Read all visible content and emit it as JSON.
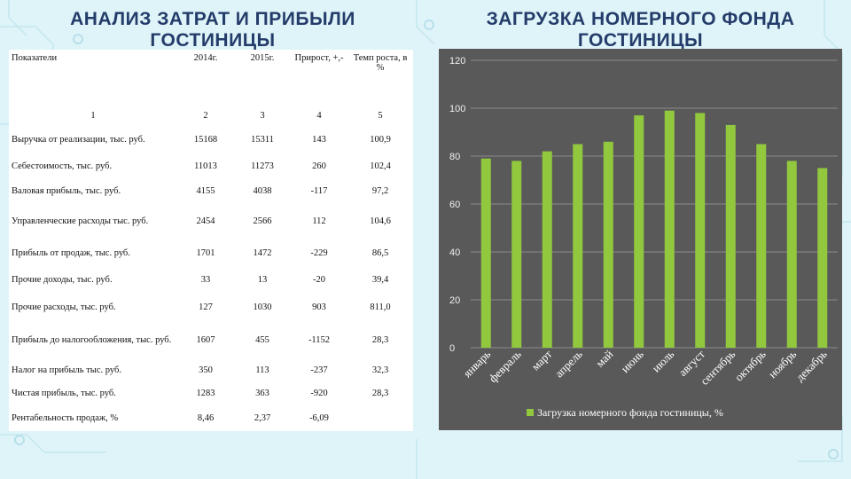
{
  "titles": {
    "left": "АНАЛИЗ ЗАТРАТ И ПРИБЫЛИ ГОСТИНИЦЫ",
    "right": "ЗАГРУЗКА НОМЕРНОГО ФОНДА ГОСТИНИЦЫ"
  },
  "table": {
    "headers": [
      "Показатели",
      "2014г.",
      "2015г.",
      "Прирост, +,-",
      "Темп роста, в %"
    ],
    "numbering": [
      "1",
      "2",
      "3",
      "4",
      "5"
    ],
    "rows": [
      [
        "Выручка от реализации, тыс. руб.",
        "15168",
        "15311",
        "143",
        "100,9"
      ],
      [
        "Себестоимость, тыс. руб.",
        "11013",
        "11273",
        "260",
        "102,4"
      ],
      [
        "Валовая прибыль, тыс. руб.",
        "4155",
        "4038",
        "-117",
        "97,2"
      ],
      [
        "Управленческие расходы тыс. руб.",
        "2454",
        "2566",
        "112",
        "104,6"
      ],
      [
        "Прибыль от продаж, тыс. руб.",
        "1701",
        "1472",
        "-229",
        "86,5"
      ],
      [
        "Прочие доходы, тыс. руб.",
        "33",
        "13",
        "-20",
        "39,4"
      ],
      [
        "Прочие расходы, тыс. руб.",
        "127",
        "1030",
        "903",
        "811,0"
      ],
      [
        "Прибыль до налогообложения, тыс. руб.",
        "1607",
        "455",
        "-1152",
        "28,3"
      ],
      [
        "Налог на прибыль тыс. руб.",
        "350",
        "113",
        "-237",
        "32,3"
      ],
      [
        "Чистая прибыль, тыс. руб.",
        "1283",
        "363",
        "-920",
        "28,3"
      ],
      [
        "Рентабельность продаж, %",
        "8,46",
        "2,37",
        "-6,09",
        ""
      ]
    ]
  },
  "chart_data": {
    "type": "bar",
    "categories": [
      "январь",
      "февраль",
      "март",
      "апрель",
      "май",
      "июнь",
      "июль",
      "август",
      "сентябрь",
      "октябрь",
      "ноябрь",
      "декабрь"
    ],
    "series": [
      {
        "name": "Загрузка номерного фонда гостиницы, %",
        "values": [
          79,
          78,
          82,
          85,
          86,
          97,
          99,
          98,
          93,
          85,
          78,
          75
        ],
        "color": "#92c83e"
      }
    ],
    "yticks": [
      0,
      20,
      40,
      60,
      80,
      100,
      120
    ],
    "ylim": [
      0,
      120
    ],
    "grid": true,
    "legend": "bottom",
    "background": "#595959"
  }
}
